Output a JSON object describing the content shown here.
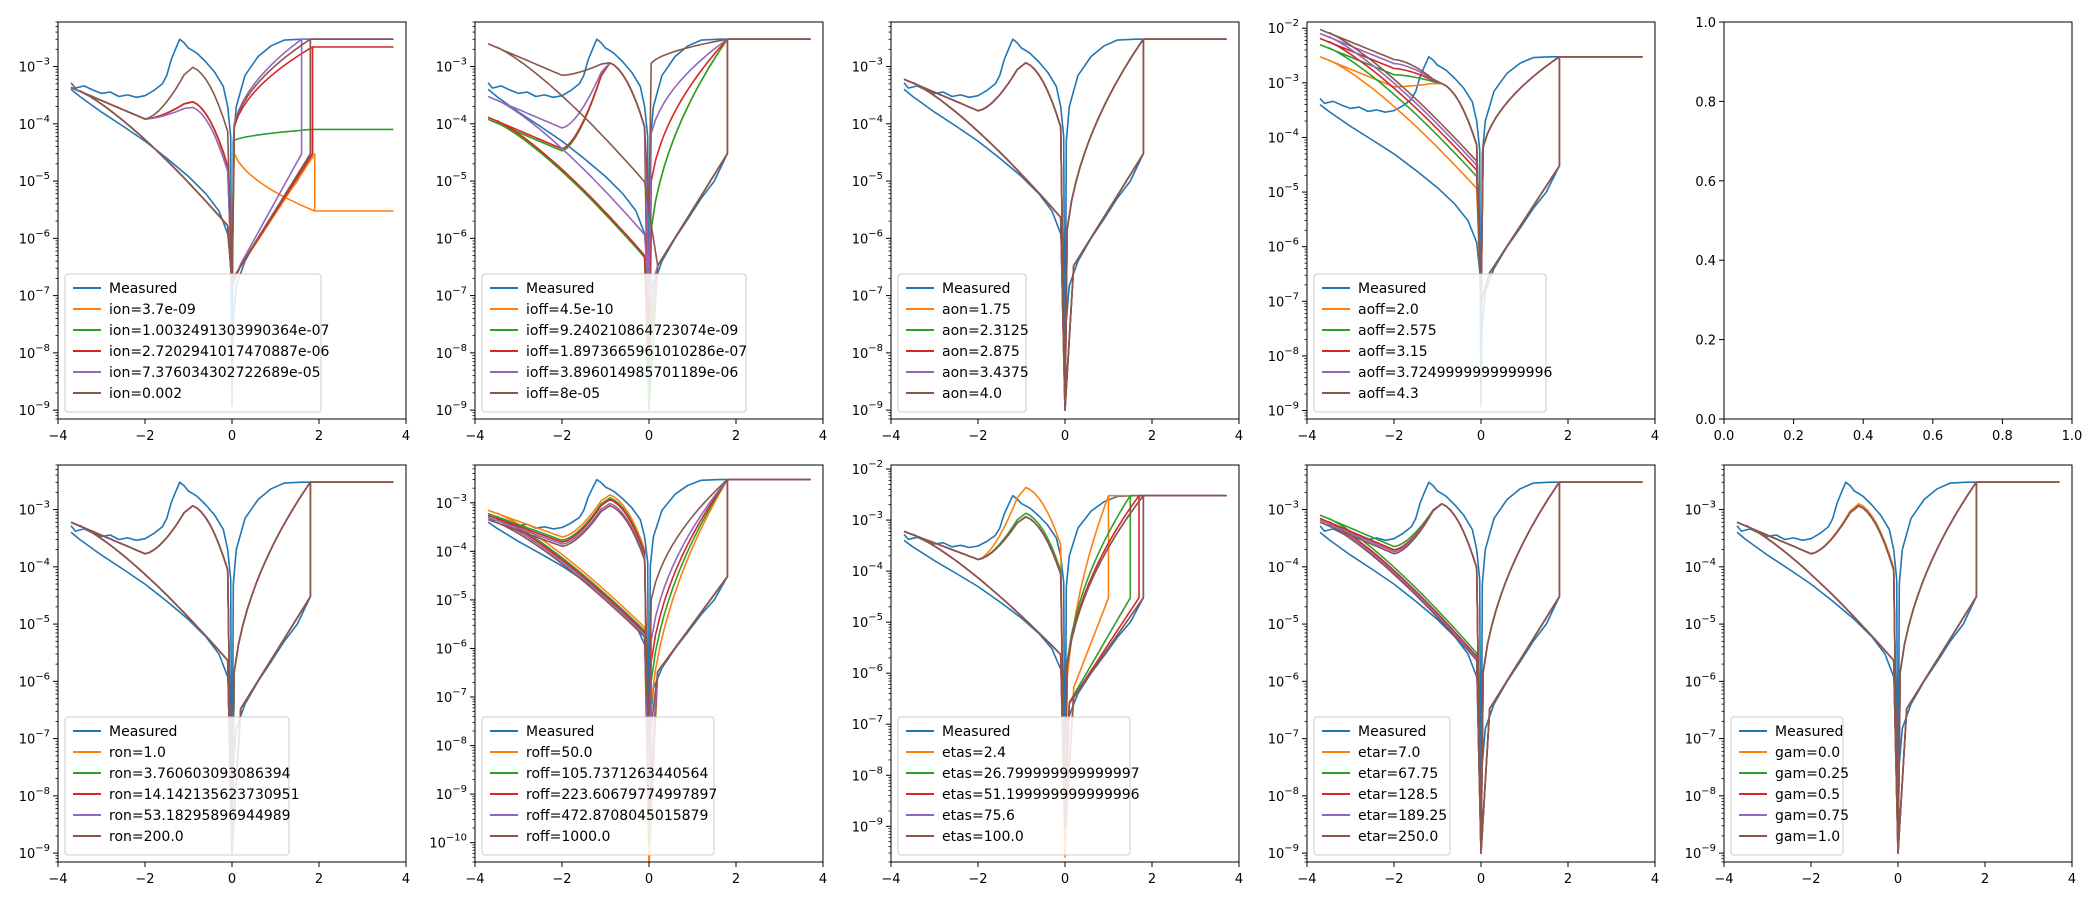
{
  "chart_data": [
    {
      "type": "line",
      "yscale": "log",
      "xlim": [
        -4,
        4
      ],
      "ylim": [
        7e-10,
        0.006
      ],
      "xticks": [
        "−4",
        "−2",
        "0",
        "2",
        "4"
      ],
      "ytick_exps": [
        -9,
        -8,
        -7,
        -6,
        -5,
        -4,
        -3
      ],
      "legend": "lower-left",
      "series": [
        {
          "name": "Measured",
          "color": "#1f77b4",
          "kind": "measured"
        },
        {
          "name": "ion=3.7e-09",
          "color": "#ff7f0e",
          "kind": "loop",
          "left": 0.00043,
          "peak": 0.00025,
          "right": 3e-06,
          "drop": 1.9,
          "dip": 1.5e-07,
          "fall": -1.0
        },
        {
          "name": "ion=1.0032491303990364e-07",
          "color": "#2ca02c",
          "kind": "loop",
          "left": 0.00043,
          "peak": 0.00025,
          "right": 8e-05,
          "drop": 1.85,
          "dip": 1.5e-07,
          "fall": -1.0
        },
        {
          "name": "ion=2.7202941017470887e-06",
          "color": "#d62728",
          "kind": "loop",
          "left": 0.00043,
          "peak": 0.00025,
          "right": 0.0022,
          "drop": 1.85,
          "dip": 1.5e-07,
          "fall": -0.9
        },
        {
          "name": "ion=7.376034302722689e-05",
          "color": "#9467bd",
          "kind": "loop",
          "left": 0.00043,
          "peak": 0.0002,
          "right": 0.003,
          "drop": 1.6,
          "dip": 1.5e-07,
          "fall": -0.8
        },
        {
          "name": "ion=0.002",
          "color": "#8c564b",
          "kind": "loop",
          "left": 0.00043,
          "peak": 0.001,
          "right": 0.003,
          "drop": 1.8,
          "dip": 1.5e-07,
          "fall": -0.9
        }
      ]
    },
    {
      "type": "line",
      "yscale": "log",
      "xlim": [
        -4,
        4
      ],
      "ylim": [
        7e-10,
        0.006
      ],
      "xticks": [
        "−4",
        "−2",
        "0",
        "2",
        "4"
      ],
      "ytick_exps": [
        -9,
        -8,
        -7,
        -6,
        -5,
        -4,
        -3
      ],
      "legend": "lower-left",
      "series": [
        {
          "name": "Measured",
          "color": "#1f77b4",
          "kind": "measured"
        },
        {
          "name": "ioff=4.5e-10",
          "color": "#ff7f0e",
          "kind": "loop",
          "left": 0.00012,
          "peak": 0.0012,
          "right": 0.003,
          "drop": 1.8,
          "dip": 1e-09,
          "fall": -1.0
        },
        {
          "name": "ioff=9.240210864723074e-09",
          "color": "#2ca02c",
          "kind": "loop",
          "left": 0.00012,
          "peak": 0.0012,
          "right": 0.003,
          "drop": 1.8,
          "dip": 1e-09,
          "fall": -1.0
        },
        {
          "name": "ioff=1.8973665961010286e-07",
          "color": "#d62728",
          "kind": "loop",
          "left": 0.00013,
          "peak": 0.0012,
          "right": 0.003,
          "drop": 1.8,
          "dip": 1e-08,
          "fall": -1.0
        },
        {
          "name": "ioff=3.896014985701189e-06",
          "color": "#9467bd",
          "kind": "loop",
          "left": 0.0003,
          "peak": 0.0012,
          "right": 0.003,
          "drop": 1.8,
          "dip": 1e-07,
          "fall": -1.0
        },
        {
          "name": "ioff=8e-05",
          "color": "#8c564b",
          "kind": "loop",
          "left": 0.0025,
          "peak": 0.0012,
          "right": 0.003,
          "drop": 1.8,
          "dip": 3e-06,
          "fall": -1.0
        }
      ]
    },
    {
      "type": "line",
      "yscale": "log",
      "xlim": [
        -4,
        4
      ],
      "ylim": [
        7e-10,
        0.006
      ],
      "xticks": [
        "−4",
        "−2",
        "0",
        "2",
        "4"
      ],
      "ytick_exps": [
        -9,
        -8,
        -7,
        -6,
        -5,
        -4,
        -3
      ],
      "legend": "lower-left",
      "series": [
        {
          "name": "Measured",
          "color": "#1f77b4",
          "kind": "measured"
        },
        {
          "name": "aon=1.75",
          "color": "#ff7f0e",
          "kind": "loop",
          "left": 0.0006,
          "peak": 0.0012,
          "right": 0.003,
          "drop": 1.8,
          "dip": 1e-09,
          "fall": -1.0
        },
        {
          "name": "aon=2.3125",
          "color": "#2ca02c",
          "kind": "loop",
          "left": 0.0006,
          "peak": 0.0012,
          "right": 0.003,
          "drop": 1.8,
          "dip": 1e-09,
          "fall": -1.0
        },
        {
          "name": "aon=2.875",
          "color": "#d62728",
          "kind": "loop",
          "left": 0.0006,
          "peak": 0.0012,
          "right": 0.003,
          "drop": 1.8,
          "dip": 1e-09,
          "fall": -1.0
        },
        {
          "name": "aon=3.4375",
          "color": "#9467bd",
          "kind": "loop",
          "left": 0.0006,
          "peak": 0.0012,
          "right": 0.003,
          "drop": 1.8,
          "dip": 1e-09,
          "fall": -1.0
        },
        {
          "name": "aon=4.0",
          "color": "#8c564b",
          "kind": "loop",
          "left": 0.0006,
          "peak": 0.0012,
          "right": 0.003,
          "drop": 1.8,
          "dip": 1e-09,
          "fall": -1.0
        }
      ]
    },
    {
      "type": "line",
      "yscale": "log",
      "xlim": [
        -4,
        4
      ],
      "ylim": [
        7e-10,
        0.013
      ],
      "xticks": [
        "−4",
        "−2",
        "0",
        "2",
        "4"
      ],
      "ytick_exps": [
        -9,
        -8,
        -7,
        -6,
        -5,
        -4,
        -3,
        -2
      ],
      "legend": "lower-left",
      "series": [
        {
          "name": "Measured",
          "color": "#1f77b4",
          "kind": "measured"
        },
        {
          "name": "aoff=2.0",
          "color": "#ff7f0e",
          "kind": "loop",
          "left": 0.003,
          "peak": 0.001,
          "right": 0.003,
          "drop": 1.8,
          "dip": 1e-07,
          "fall": -1.0
        },
        {
          "name": "aoff=2.575",
          "color": "#2ca02c",
          "kind": "loop",
          "left": 0.005,
          "peak": 0.001,
          "right": 0.003,
          "drop": 1.8,
          "dip": 1e-07,
          "fall": -1.0
        },
        {
          "name": "aoff=3.15",
          "color": "#d62728",
          "kind": "loop",
          "left": 0.0065,
          "peak": 0.001,
          "right": 0.003,
          "drop": 1.8,
          "dip": 1e-07,
          "fall": -1.0
        },
        {
          "name": "aoff=3.7249999999999996",
          "color": "#9467bd",
          "kind": "loop",
          "left": 0.008,
          "peak": 0.001,
          "right": 0.003,
          "drop": 1.8,
          "dip": 1e-07,
          "fall": -1.0
        },
        {
          "name": "aoff=4.3",
          "color": "#8c564b",
          "kind": "loop",
          "left": 0.0095,
          "peak": 0.001,
          "right": 0.003,
          "drop": 1.8,
          "dip": 1e-07,
          "fall": -1.0
        }
      ]
    },
    {
      "type": "empty",
      "yscale": "linear",
      "xlim": [
        0,
        1
      ],
      "ylim": [
        0,
        1
      ],
      "xticks": [
        "0.0",
        "0.2",
        "0.4",
        "0.6",
        "0.8",
        "1.0"
      ],
      "yticks": [
        "0.0",
        "0.2",
        "0.4",
        "0.6",
        "0.8",
        "1.0"
      ],
      "series": []
    },
    {
      "type": "line",
      "yscale": "log",
      "xlim": [
        -4,
        4
      ],
      "ylim": [
        7e-10,
        0.006
      ],
      "xticks": [
        "−4",
        "−2",
        "0",
        "2",
        "4"
      ],
      "ytick_exps": [
        -9,
        -8,
        -7,
        -6,
        -5,
        -4,
        -3
      ],
      "legend": "lower-left",
      "series": [
        {
          "name": "Measured",
          "color": "#1f77b4",
          "kind": "measured"
        },
        {
          "name": "ron=1.0",
          "color": "#ff7f0e",
          "kind": "loop",
          "left": 0.0006,
          "peak": 0.0012,
          "right": 0.003,
          "drop": 1.8,
          "dip": 1e-09,
          "fall": -1.0
        },
        {
          "name": "ron=3.760603093086394",
          "color": "#2ca02c",
          "kind": "loop",
          "left": 0.0006,
          "peak": 0.0012,
          "right": 0.003,
          "drop": 1.8,
          "dip": 1e-09,
          "fall": -1.0
        },
        {
          "name": "ron=14.142135623730951",
          "color": "#d62728",
          "kind": "loop",
          "left": 0.0006,
          "peak": 0.0012,
          "right": 0.003,
          "drop": 1.8,
          "dip": 1e-09,
          "fall": -1.0
        },
        {
          "name": "ron=53.18295896944989",
          "color": "#9467bd",
          "kind": "loop",
          "left": 0.0006,
          "peak": 0.0012,
          "right": 0.003,
          "drop": 1.8,
          "dip": 1e-09,
          "fall": -1.0
        },
        {
          "name": "ron=200.0",
          "color": "#8c564b",
          "kind": "loop",
          "left": 0.0006,
          "peak": 0.0012,
          "right": 0.003,
          "drop": 1.8,
          "dip": 1e-09,
          "fall": -1.0
        }
      ]
    },
    {
      "type": "line",
      "yscale": "log",
      "xlim": [
        -4,
        4
      ],
      "ylim": [
        4e-11,
        0.006
      ],
      "xticks": [
        "−4",
        "−2",
        "0",
        "2",
        "4"
      ],
      "ytick_exps": [
        -10,
        -9,
        -8,
        -7,
        -6,
        -5,
        -4,
        -3
      ],
      "legend": "lower-left",
      "series": [
        {
          "name": "Measured",
          "color": "#1f77b4",
          "kind": "measured"
        },
        {
          "name": "roff=50.0",
          "color": "#ff7f0e",
          "kind": "loop",
          "left": 0.0007,
          "peak": 0.0015,
          "right": 0.003,
          "drop": 1.8,
          "dip": 3e-11,
          "fall": -1.0
        },
        {
          "name": "roff=105.7371263440564",
          "color": "#2ca02c",
          "kind": "loop",
          "left": 0.0006,
          "peak": 0.0013,
          "right": 0.003,
          "drop": 1.8,
          "dip": 1e-10,
          "fall": -1.0
        },
        {
          "name": "roff=223.60679774997897",
          "color": "#d62728",
          "kind": "loop",
          "left": 0.00055,
          "peak": 0.0012,
          "right": 0.003,
          "drop": 1.8,
          "dip": 3e-10,
          "fall": -1.0
        },
        {
          "name": "roff=472.8708045015879",
          "color": "#9467bd",
          "kind": "loop",
          "left": 0.0005,
          "peak": 0.001,
          "right": 0.003,
          "drop": 1.8,
          "dip": 1e-09,
          "fall": -1.0
        },
        {
          "name": "roff=1000.0",
          "color": "#8c564b",
          "kind": "loop",
          "left": 0.00045,
          "peak": 0.0009,
          "right": 0.003,
          "drop": 1.8,
          "dip": 1e-08,
          "fall": -1.0
        }
      ]
    },
    {
      "type": "line",
      "yscale": "log",
      "xlim": [
        -4,
        4
      ],
      "ylim": [
        2e-10,
        0.012
      ],
      "xticks": [
        "−4",
        "−2",
        "0",
        "2",
        "4"
      ],
      "ytick_exps": [
        -9,
        -8,
        -7,
        -6,
        -5,
        -4,
        -3,
        -2
      ],
      "legend": "lower-left",
      "series": [
        {
          "name": "Measured",
          "color": "#1f77b4",
          "kind": "measured"
        },
        {
          "name": "etas=2.4",
          "color": "#ff7f0e",
          "kind": "loop",
          "left": 0.0006,
          "peak": 0.0045,
          "right": 0.003,
          "drop": 1.0,
          "dip": 2.5e-10,
          "fall": -0.8
        },
        {
          "name": "etas=26.799999999999997",
          "color": "#2ca02c",
          "kind": "loop",
          "left": 0.0006,
          "peak": 0.0014,
          "right": 0.003,
          "drop": 1.5,
          "dip": 1e-09,
          "fall": -1.0
        },
        {
          "name": "etas=51.199999999999996",
          "color": "#d62728",
          "kind": "loop",
          "left": 0.0006,
          "peak": 0.0012,
          "right": 0.003,
          "drop": 1.7,
          "dip": 1e-09,
          "fall": -1.0
        },
        {
          "name": "etas=75.6",
          "color": "#9467bd",
          "kind": "loop",
          "left": 0.0006,
          "peak": 0.0012,
          "right": 0.003,
          "drop": 1.8,
          "dip": 1e-09,
          "fall": -1.0
        },
        {
          "name": "etas=100.0",
          "color": "#8c564b",
          "kind": "loop",
          "left": 0.0006,
          "peak": 0.0012,
          "right": 0.003,
          "drop": 1.8,
          "dip": 1e-09,
          "fall": -1.0
        }
      ]
    },
    {
      "type": "line",
      "yscale": "log",
      "xlim": [
        -4,
        4
      ],
      "ylim": [
        7e-10,
        0.006
      ],
      "xticks": [
        "−4",
        "−2",
        "0",
        "2",
        "4"
      ],
      "ytick_exps": [
        -9,
        -8,
        -7,
        -6,
        -5,
        -4,
        -3
      ],
      "legend": "lower-left",
      "series": [
        {
          "name": "Measured",
          "color": "#1f77b4",
          "kind": "measured"
        },
        {
          "name": "etar=7.0",
          "color": "#ff7f0e",
          "kind": "loop",
          "left": 0.0007,
          "peak": 0.0013,
          "right": 0.003,
          "drop": 1.8,
          "dip": 1e-09,
          "fall": -1.1
        },
        {
          "name": "etar=67.75",
          "color": "#2ca02c",
          "kind": "loop",
          "left": 0.0008,
          "peak": 0.0013,
          "right": 0.003,
          "drop": 1.8,
          "dip": 1e-09,
          "fall": -1.1
        },
        {
          "name": "etar=128.5",
          "color": "#d62728",
          "kind": "loop",
          "left": 0.0007,
          "peak": 0.0013,
          "right": 0.003,
          "drop": 1.8,
          "dip": 1e-09,
          "fall": -1.1
        },
        {
          "name": "etar=189.25",
          "color": "#9467bd",
          "kind": "loop",
          "left": 0.00065,
          "peak": 0.0013,
          "right": 0.003,
          "drop": 1.8,
          "dip": 1e-09,
          "fall": -1.1
        },
        {
          "name": "etar=250.0",
          "color": "#8c564b",
          "kind": "loop",
          "left": 0.0006,
          "peak": 0.0013,
          "right": 0.003,
          "drop": 1.8,
          "dip": 1e-09,
          "fall": -1.1
        }
      ]
    },
    {
      "type": "line",
      "yscale": "log",
      "xlim": [
        -4,
        4
      ],
      "ylim": [
        7e-10,
        0.006
      ],
      "xticks": [
        "−4",
        "−2",
        "0",
        "2",
        "4"
      ],
      "ytick_exps": [
        -9,
        -8,
        -7,
        -6,
        -5,
        -4,
        -3
      ],
      "legend": "lower-left",
      "series": [
        {
          "name": "Measured",
          "color": "#1f77b4",
          "kind": "measured"
        },
        {
          "name": "gam=0.0",
          "color": "#ff7f0e",
          "kind": "loop",
          "left": 0.0006,
          "peak": 0.0013,
          "right": 0.003,
          "drop": 1.8,
          "dip": 1e-09,
          "fall": -0.9
        },
        {
          "name": "gam=0.25",
          "color": "#2ca02c",
          "kind": "loop",
          "left": 0.0006,
          "peak": 0.0012,
          "right": 0.003,
          "drop": 1.8,
          "dip": 1e-09,
          "fall": -1.1
        },
        {
          "name": "gam=0.5",
          "color": "#d62728",
          "kind": "loop",
          "left": 0.0006,
          "peak": 0.0012,
          "right": 0.003,
          "drop": 1.8,
          "dip": 1e-09,
          "fall": -1.1
        },
        {
          "name": "gam=0.75",
          "color": "#9467bd",
          "kind": "loop",
          "left": 0.0006,
          "peak": 0.0012,
          "right": 0.003,
          "drop": 1.8,
          "dip": 1e-09,
          "fall": -1.1
        },
        {
          "name": "gam=1.0",
          "color": "#8c564b",
          "kind": "loop",
          "left": 0.0006,
          "peak": 0.0012,
          "right": 0.003,
          "drop": 1.8,
          "dip": 1e-09,
          "fall": -1.1
        }
      ]
    }
  ]
}
